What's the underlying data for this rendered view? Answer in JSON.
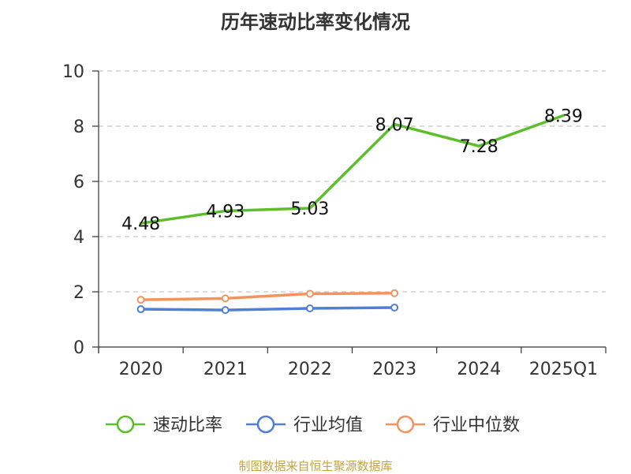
{
  "chart_data": {
    "type": "line",
    "title": "历年速动比率变化情况",
    "categories": [
      "2020",
      "2021",
      "2022",
      "2023",
      "2024",
      "2025Q1"
    ],
    "ylim": [
      0,
      10
    ],
    "yticks": [
      0,
      2,
      4,
      6,
      8,
      10
    ],
    "grid": true,
    "legend_position": "bottom",
    "series": [
      {
        "name": "速动比率",
        "color": "#5cbf2a",
        "show_markers": false,
        "show_labels": true,
        "values": [
          4.48,
          4.93,
          5.03,
          8.07,
          7.28,
          8.39
        ]
      },
      {
        "name": "行业均值",
        "color": "#4f7fd6",
        "show_markers": true,
        "show_labels": false,
        "values": [
          1.37,
          1.34,
          1.4,
          1.43,
          null,
          null
        ]
      },
      {
        "name": "行业中位数",
        "color": "#f5935f",
        "show_markers": true,
        "show_labels": false,
        "values": [
          1.71,
          1.76,
          1.93,
          1.95,
          null,
          null
        ]
      }
    ]
  },
  "source": "制图数据来自恒生聚源数据库"
}
